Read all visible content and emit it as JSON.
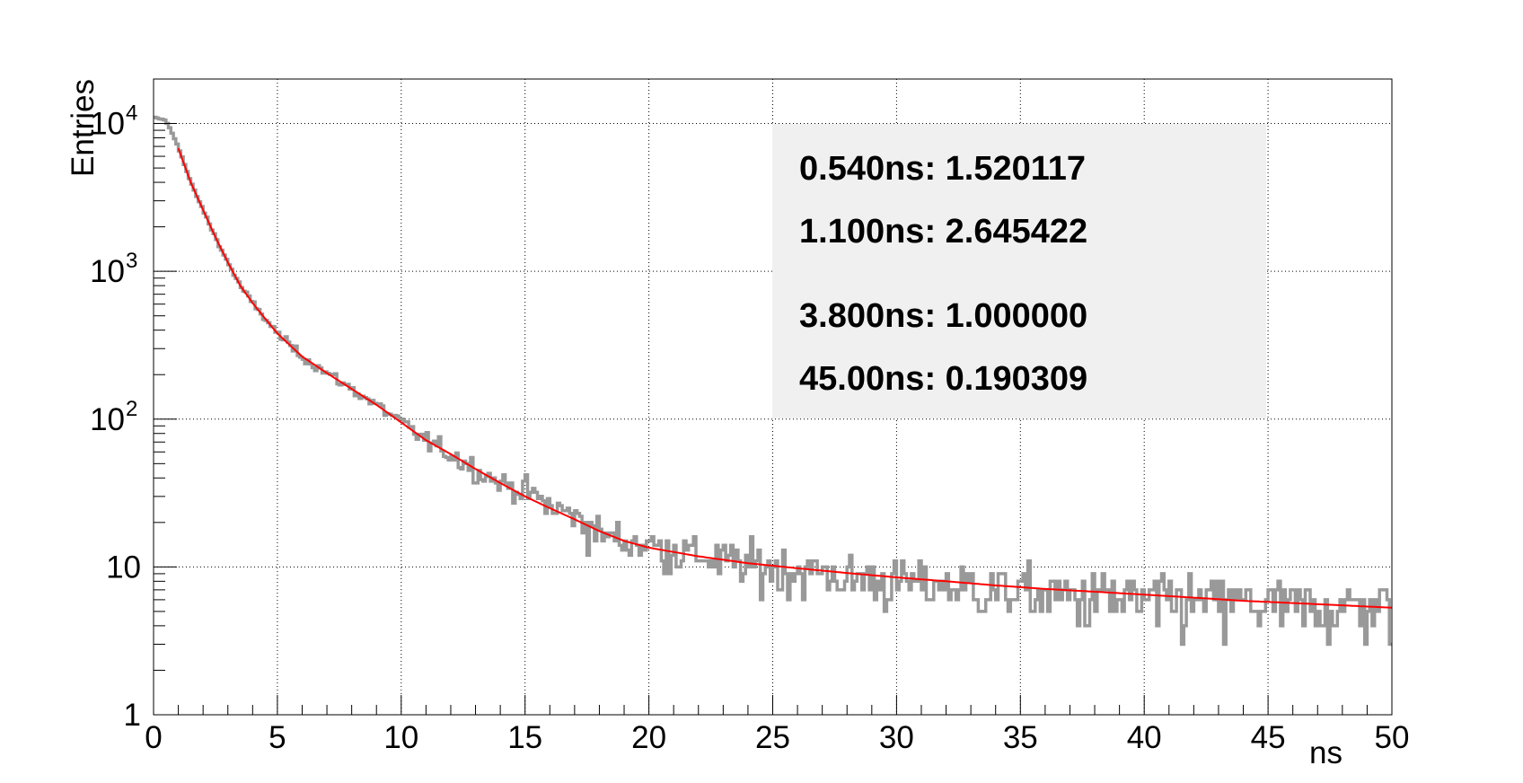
{
  "chart_data": {
    "type": "line",
    "title": "",
    "xlabel": "ns",
    "ylabel": "Entries",
    "xlim": [
      0,
      50
    ],
    "ylim": [
      1,
      20000
    ],
    "y_scale": "log",
    "grid": true,
    "x_ticks": [
      "0",
      "5",
      "10",
      "15",
      "20",
      "25",
      "30",
      "35",
      "40",
      "45",
      "50"
    ],
    "y_ticks": [
      {
        "value": 1,
        "label": "1"
      },
      {
        "value": 10,
        "label": "10"
      },
      {
        "value": 100,
        "label": "10",
        "exp": "2"
      },
      {
        "value": 1000,
        "label": "10",
        "exp": "3"
      },
      {
        "value": 10000,
        "label": "10",
        "exp": "4"
      }
    ],
    "legend_position": "top-right",
    "legend": [
      {
        "text": "0.540ns: 1.520117"
      },
      {
        "text": "1.100ns: 2.645422"
      },
      {
        "text": "3.800ns: 1.000000"
      },
      {
        "text": "45.00ns: 0.190309"
      }
    ],
    "colors": {
      "histogram": "#999999",
      "fit": "#ff0000",
      "legend_bg": "#f0f0f0",
      "grid": "#000000"
    },
    "series": [
      {
        "kind": "histogram",
        "bin_width": 0.1,
        "x": [
          0,
          0.5,
          1,
          1.5,
          2,
          2.5,
          3,
          3.5,
          4,
          4.5,
          5,
          6,
          7,
          8,
          9,
          10,
          11,
          12,
          13,
          14,
          15,
          16,
          17,
          18,
          19,
          20,
          21,
          22,
          23,
          24,
          25,
          26,
          27,
          28,
          29,
          30,
          31,
          32,
          33,
          34,
          35,
          36,
          37,
          38,
          39,
          40,
          41,
          42,
          43,
          44,
          45,
          46,
          47,
          48,
          49,
          50
        ],
        "values": [
          11000,
          10500,
          7000,
          4000,
          2600,
          1700,
          1150,
          800,
          610,
          480,
          380,
          265,
          205,
          160,
          125,
          95,
          72,
          58,
          46,
          37,
          33,
          26,
          22,
          17,
          15,
          14,
          13,
          12,
          11,
          10.5,
          10,
          9.5,
          9,
          8.5,
          8.3,
          8,
          7.7,
          7.5,
          7.2,
          7,
          6.8,
          6.6,
          6.4,
          6.2,
          6.1,
          6,
          5.9,
          5.8,
          5.7,
          5.6,
          5.5,
          5.5,
          5.4,
          5.4,
          5.3,
          5.3
        ]
      },
      {
        "kind": "fit",
        "x": [
          1,
          1.5,
          2,
          2.5,
          3,
          3.5,
          4,
          4.5,
          5,
          6,
          7,
          8,
          9,
          10,
          11,
          12,
          13,
          14,
          15,
          16,
          17,
          18,
          19,
          20,
          22,
          24,
          26,
          28,
          30,
          32,
          34,
          36,
          38,
          40,
          42,
          44,
          46,
          48,
          50
        ],
        "values": [
          6800,
          4000,
          2600,
          1700,
          1150,
          800,
          610,
          480,
          380,
          265,
          205,
          160,
          125,
          95,
          72,
          58,
          46,
          37,
          30,
          25,
          21,
          17.5,
          15,
          13.5,
          11.8,
          10.6,
          9.8,
          9.1,
          8.5,
          8,
          7.5,
          7.1,
          6.8,
          6.5,
          6.2,
          5.9,
          5.7,
          5.5,
          5.3
        ]
      }
    ]
  }
}
